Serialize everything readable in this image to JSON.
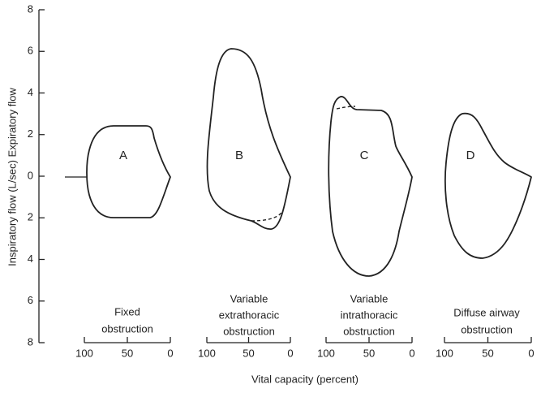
{
  "y_axis": {
    "label": "Inspiratory  flow (L/sec) Expiratory flow",
    "ticks": [
      "8",
      "6",
      "4",
      "2",
      "0",
      "2",
      "4",
      "6",
      "8"
    ]
  },
  "x_axis": {
    "label": "Vital capacity (percent)"
  },
  "panels": [
    {
      "letter": "A",
      "caption": [
        "Fixed",
        "obstruction"
      ],
      "ticks": [
        "100",
        "50",
        "0"
      ]
    },
    {
      "letter": "B",
      "caption": [
        "Variable",
        "extrathoracic",
        "obstruction"
      ],
      "ticks": [
        "100",
        "50",
        "0"
      ]
    },
    {
      "letter": "C",
      "caption": [
        "Variable",
        "intrathoracic",
        "obstruction"
      ],
      "ticks": [
        "100",
        "50",
        "0"
      ]
    },
    {
      "letter": "D",
      "caption": [
        "Diffuse airway",
        "obstruction"
      ],
      "ticks": [
        "100",
        "50",
        "0"
      ]
    }
  ]
}
